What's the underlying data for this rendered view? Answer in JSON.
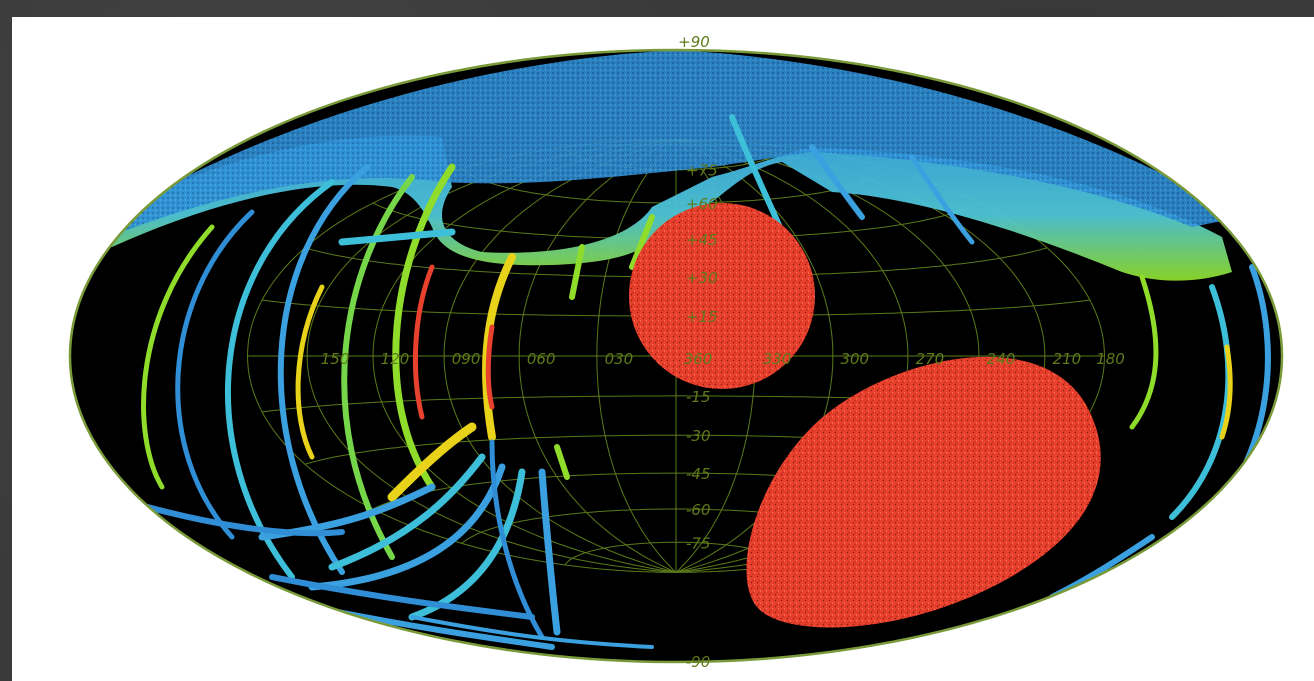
{
  "map": {
    "projection": "aitoff-hammer",
    "top_label": "+90",
    "bottom_label": "-90",
    "longitude_labels": [
      {
        "lon": 150,
        "text": "150"
      },
      {
        "lon": 120,
        "text": "120"
      },
      {
        "lon": 90,
        "text": "090"
      },
      {
        "lon": 60,
        "text": "060"
      },
      {
        "lon": 30,
        "text": "030"
      },
      {
        "lon": 0,
        "text": "360"
      },
      {
        "lon": -30,
        "text": "330"
      },
      {
        "lon": -60,
        "text": "300"
      },
      {
        "lon": -90,
        "text": "270"
      },
      {
        "lon": -120,
        "text": "240"
      },
      {
        "lon": -150,
        "text": "210"
      },
      {
        "lon": -180,
        "text": "180"
      }
    ],
    "latitude_labels": [
      {
        "lat": 75,
        "text": "+75"
      },
      {
        "lat": 60,
        "text": "+60"
      },
      {
        "lat": 45,
        "text": "+45"
      },
      {
        "lat": 30,
        "text": "+30"
      },
      {
        "lat": 15,
        "text": "+15"
      },
      {
        "lat": -15,
        "text": "-15"
      },
      {
        "lat": -30,
        "text": "-30"
      },
      {
        "lat": -45,
        "text": "-45"
      },
      {
        "lat": -60,
        "text": "-60"
      },
      {
        "lat": -75,
        "text": "-75"
      }
    ],
    "colors": {
      "background": "#000000",
      "grid": "#5b7a1a",
      "outline": "#7a9a3a",
      "survey_blue": "#2e8fd8",
      "survey_cyan": "#3fc3d8",
      "survey_green": "#8fdc2a",
      "survey_yellow": "#e8d21a",
      "survey_red": "#e8422e",
      "field_red": "#e8402c"
    }
  }
}
